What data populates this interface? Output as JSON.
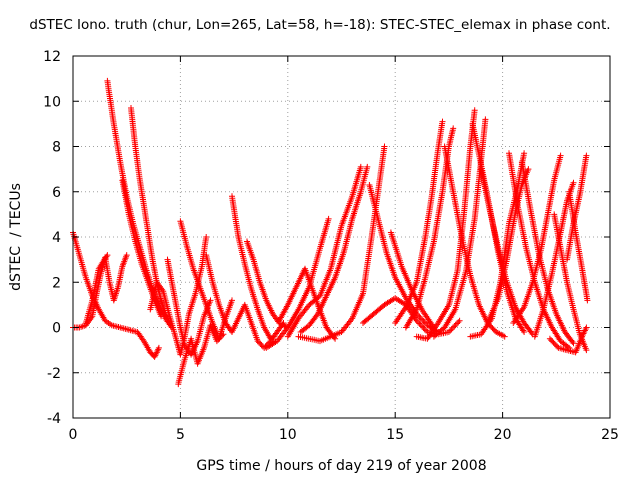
{
  "chart_data": {
    "type": "scatter",
    "title": "dSTEC Iono. truth (chur, Lon=265, Lat=58, h=-18): STEC-STEC_elemax in phase cont.",
    "xlabel": "GPS time / hours of day 219 of year 2008",
    "ylabel": "dSTEC  / TECUs",
    "xlim": [
      0,
      25
    ],
    "ylim": [
      -4,
      12
    ],
    "x_ticks": [
      "0",
      "5",
      "10",
      "15",
      "20",
      "25"
    ],
    "y_ticks": [
      "-4",
      "-2",
      "0",
      "2",
      "4",
      "6",
      "8",
      "10",
      "12"
    ],
    "grid": true,
    "marker": "+",
    "color": "#ff0000",
    "series": [
      {
        "points": [
          [
            0,
            4.2
          ],
          [
            0.3,
            3.2
          ],
          [
            0.6,
            2.2
          ],
          [
            0.9,
            1.4
          ],
          [
            1.2,
            0.8
          ],
          [
            1.5,
            0.3
          ],
          [
            1.8,
            0.1
          ],
          [
            2.2,
            0.0
          ],
          [
            2.6,
            -0.1
          ],
          [
            3.0,
            -0.2
          ],
          [
            3.3,
            -0.6
          ],
          [
            3.6,
            -1.1
          ],
          [
            3.8,
            -1.3
          ],
          [
            4.0,
            -0.9
          ]
        ]
      },
      {
        "points": [
          [
            0,
            0
          ],
          [
            0.3,
            0
          ],
          [
            0.6,
            0.1
          ],
          [
            0.9,
            0.5
          ],
          [
            1.1,
            1.5
          ],
          [
            1.3,
            2.4
          ],
          [
            1.5,
            3.1
          ],
          [
            1.7,
            2.0
          ],
          [
            1.9,
            1.2
          ],
          [
            2.1,
            1.8
          ],
          [
            2.3,
            2.7
          ],
          [
            2.5,
            3.2
          ]
        ]
      },
      {
        "points": [
          [
            0.6,
            0.2
          ],
          [
            0.9,
            1.2
          ],
          [
            1.2,
            2.6
          ],
          [
            1.6,
            3.2
          ]
        ]
      },
      {
        "points": [
          [
            1.6,
            10.9
          ],
          [
            1.9,
            9.0
          ],
          [
            2.2,
            7.3
          ],
          [
            2.5,
            5.8
          ],
          [
            2.8,
            4.6
          ],
          [
            3.1,
            3.6
          ],
          [
            3.4,
            2.6
          ],
          [
            3.7,
            1.7
          ],
          [
            4.0,
            1.0
          ],
          [
            4.3,
            0.4
          ],
          [
            4.6,
            0.0
          ]
        ]
      },
      {
        "points": [
          [
            2.7,
            9.7
          ],
          [
            2.9,
            8.0
          ],
          [
            3.1,
            6.6
          ],
          [
            3.3,
            5.4
          ],
          [
            3.5,
            4.2
          ],
          [
            3.7,
            3.0
          ],
          [
            3.9,
            2.0
          ],
          [
            4.1,
            1.2
          ],
          [
            4.3,
            0.6
          ],
          [
            4.5,
            0.2
          ]
        ]
      },
      {
        "points": [
          [
            2.3,
            6.5
          ],
          [
            2.6,
            5.0
          ],
          [
            2.9,
            3.8
          ],
          [
            3.2,
            2.8
          ],
          [
            3.5,
            2.0
          ],
          [
            3.8,
            1.2
          ],
          [
            4.1,
            0.5
          ]
        ]
      },
      {
        "points": [
          [
            3.6,
            0.8
          ],
          [
            3.9,
            2.0
          ],
          [
            4.2,
            1.6
          ],
          [
            4.5,
            0.5
          ],
          [
            4.8,
            -0.5
          ],
          [
            5.0,
            -1.2
          ],
          [
            5.2,
            -0.4
          ],
          [
            5.4,
            0.6
          ],
          [
            5.7,
            1.5
          ],
          [
            6.0,
            2.7
          ],
          [
            6.2,
            4.0
          ]
        ]
      },
      {
        "points": [
          [
            4.4,
            3.0
          ],
          [
            4.6,
            2.0
          ],
          [
            4.8,
            1.0
          ],
          [
            5.0,
            0.0
          ],
          [
            5.2,
            -0.8
          ],
          [
            5.5,
            -1.2
          ],
          [
            5.8,
            -0.6
          ],
          [
            6.1,
            0.5
          ],
          [
            6.4,
            1.2
          ]
        ]
      },
      {
        "points": [
          [
            5.0,
            4.7
          ],
          [
            5.3,
            3.6
          ],
          [
            5.6,
            2.6
          ],
          [
            5.9,
            1.8
          ],
          [
            6.2,
            1.0
          ],
          [
            6.5,
            0.2
          ],
          [
            6.8,
            -0.5
          ],
          [
            7.1,
            0.4
          ],
          [
            7.4,
            1.2
          ]
        ]
      },
      {
        "points": [
          [
            4.9,
            -2.5
          ],
          [
            5.2,
            -1.4
          ],
          [
            5.5,
            -0.5
          ],
          [
            5.8,
            -1.6
          ],
          [
            6.1,
            -0.9
          ],
          [
            6.4,
            0.1
          ],
          [
            6.7,
            -0.6
          ],
          [
            7.0,
            -0.3
          ]
        ]
      },
      {
        "points": [
          [
            6.2,
            3.2
          ],
          [
            6.5,
            2.0
          ],
          [
            6.8,
            1.0
          ],
          [
            7.1,
            0.2
          ],
          [
            7.4,
            -0.2
          ],
          [
            7.7,
            0.4
          ],
          [
            8.0,
            1.0
          ],
          [
            8.3,
            0.2
          ],
          [
            8.6,
            -0.6
          ],
          [
            8.9,
            -0.9
          ],
          [
            9.2,
            -0.6
          ],
          [
            9.5,
            -0.2
          ],
          [
            9.8,
            0.2
          ]
        ]
      },
      {
        "points": [
          [
            7.4,
            5.8
          ],
          [
            7.7,
            4.0
          ],
          [
            8.0,
            2.8
          ],
          [
            8.3,
            1.7
          ],
          [
            8.6,
            0.8
          ],
          [
            8.9,
            0.0
          ],
          [
            9.2,
            -0.5
          ]
        ]
      },
      {
        "points": [
          [
            8.1,
            3.8
          ],
          [
            8.4,
            3.0
          ],
          [
            8.7,
            2.0
          ],
          [
            9.0,
            1.2
          ],
          [
            9.3,
            0.6
          ],
          [
            9.6,
            0.2
          ],
          [
            10.0,
            0.0
          ]
        ]
      },
      {
        "points": [
          [
            9.0,
            -0.9
          ],
          [
            9.5,
            -0.6
          ],
          [
            10.0,
            0.0
          ],
          [
            10.5,
            0.8
          ],
          [
            11.0,
            1.8
          ],
          [
            11.5,
            3.5
          ],
          [
            11.9,
            4.8
          ]
        ]
      },
      {
        "points": [
          [
            10.0,
            -0.4
          ],
          [
            10.5,
            0.4
          ],
          [
            11.0,
            1.0
          ],
          [
            11.5,
            1.4
          ],
          [
            12.0,
            2.6
          ],
          [
            12.5,
            4.5
          ],
          [
            13.0,
            5.8
          ],
          [
            13.4,
            7.1
          ]
        ]
      },
      {
        "points": [
          [
            9.6,
            0.3
          ],
          [
            10.0,
            1.0
          ],
          [
            10.4,
            1.8
          ],
          [
            10.8,
            2.6
          ],
          [
            11.1,
            1.8
          ],
          [
            11.4,
            1.0
          ],
          [
            11.8,
            0.0
          ],
          [
            12.2,
            -0.5
          ]
        ]
      },
      {
        "points": [
          [
            10.5,
            -0.4
          ],
          [
            11.5,
            -0.6
          ],
          [
            12.5,
            -0.2
          ],
          [
            13.0,
            0.4
          ],
          [
            13.5,
            1.5
          ],
          [
            13.9,
            4.0
          ],
          [
            14.2,
            6.0
          ],
          [
            14.5,
            8.0
          ]
        ]
      },
      {
        "points": [
          [
            10.6,
            -0.2
          ],
          [
            11.0,
            0.1
          ],
          [
            11.4,
            0.6
          ],
          [
            11.8,
            1.4
          ],
          [
            12.2,
            2.2
          ],
          [
            12.6,
            3.3
          ],
          [
            13.0,
            4.8
          ],
          [
            13.4,
            6.0
          ],
          [
            13.7,
            7.1
          ]
        ]
      },
      {
        "points": [
          [
            13.8,
            6.3
          ],
          [
            14.2,
            4.8
          ],
          [
            14.6,
            3.3
          ],
          [
            15.0,
            2.2
          ],
          [
            15.5,
            1.3
          ],
          [
            16.0,
            0.6
          ],
          [
            16.5,
            0.1
          ],
          [
            17.0,
            -0.2
          ]
        ]
      },
      {
        "points": [
          [
            13.5,
            0.2
          ],
          [
            14.0,
            0.6
          ],
          [
            14.5,
            1.0
          ],
          [
            15.0,
            1.3
          ],
          [
            15.5,
            1.0
          ],
          [
            16.0,
            0.3
          ],
          [
            16.5,
            -0.2
          ],
          [
            17.0,
            -0.3
          ],
          [
            17.5,
            -0.2
          ],
          [
            18.0,
            0.3
          ]
        ]
      },
      {
        "points": [
          [
            14.8,
            4.2
          ],
          [
            15.3,
            2.7
          ],
          [
            15.8,
            1.6
          ],
          [
            16.3,
            0.7
          ],
          [
            16.8,
            0.0
          ]
        ]
      },
      {
        "points": [
          [
            15.0,
            0.2
          ],
          [
            15.5,
            0.9
          ],
          [
            16.0,
            2.0
          ],
          [
            16.4,
            4.0
          ],
          [
            16.7,
            5.8
          ],
          [
            17.0,
            7.9
          ],
          [
            17.2,
            9.1
          ]
        ]
      },
      {
        "points": [
          [
            15.5,
            0.0
          ],
          [
            16.0,
            0.8
          ],
          [
            16.4,
            2.2
          ],
          [
            16.8,
            3.8
          ],
          [
            17.2,
            6.0
          ],
          [
            17.5,
            8.0
          ],
          [
            17.7,
            8.8
          ]
        ]
      },
      {
        "points": [
          [
            16.0,
            -0.4
          ],
          [
            16.5,
            -0.5
          ],
          [
            17.0,
            0.2
          ],
          [
            17.5,
            1.0
          ],
          [
            17.9,
            2.5
          ],
          [
            18.2,
            5.0
          ],
          [
            18.5,
            8.0
          ],
          [
            18.7,
            9.6
          ]
        ]
      },
      {
        "points": [
          [
            16.8,
            -0.4
          ],
          [
            17.3,
            0.0
          ],
          [
            17.8,
            0.8
          ],
          [
            18.3,
            2.5
          ],
          [
            18.7,
            4.8
          ],
          [
            19.0,
            7.4
          ],
          [
            19.2,
            9.2
          ]
        ]
      },
      {
        "points": [
          [
            17.3,
            8.0
          ],
          [
            17.7,
            6.0
          ],
          [
            18.1,
            4.0
          ],
          [
            18.5,
            2.3
          ],
          [
            18.9,
            1.0
          ],
          [
            19.3,
            0.2
          ],
          [
            19.7,
            -0.2
          ],
          [
            20.1,
            -0.4
          ]
        ]
      },
      {
        "points": [
          [
            18.6,
            9.0
          ],
          [
            19.0,
            7.2
          ],
          [
            19.4,
            5.3
          ],
          [
            19.8,
            3.3
          ],
          [
            20.2,
            1.6
          ],
          [
            20.6,
            0.4
          ],
          [
            21.0,
            -0.2
          ]
        ]
      },
      {
        "points": [
          [
            19.0,
            7.0
          ],
          [
            19.4,
            5.2
          ],
          [
            19.8,
            3.5
          ],
          [
            20.2,
            2.0
          ],
          [
            20.6,
            0.9
          ],
          [
            21.0,
            0.2
          ],
          [
            21.4,
            -0.3
          ]
        ]
      },
      {
        "points": [
          [
            18.5,
            -0.4
          ],
          [
            19.0,
            -0.3
          ],
          [
            19.5,
            0.4
          ],
          [
            19.9,
            2.0
          ],
          [
            20.3,
            4.6
          ],
          [
            20.7,
            6.2
          ],
          [
            21.0,
            7.7
          ]
        ]
      },
      {
        "points": [
          [
            19.3,
            0.2
          ],
          [
            19.8,
            1.3
          ],
          [
            20.2,
            3.0
          ],
          [
            20.6,
            5.1
          ],
          [
            20.9,
            6.3
          ],
          [
            21.2,
            7.0
          ]
        ]
      },
      {
        "points": [
          [
            20.3,
            7.7
          ],
          [
            20.7,
            5.4
          ],
          [
            21.1,
            3.5
          ],
          [
            21.5,
            2.0
          ],
          [
            21.9,
            0.8
          ],
          [
            22.3,
            0.0
          ],
          [
            22.7,
            -0.6
          ],
          [
            23.1,
            -0.9
          ]
        ]
      },
      {
        "points": [
          [
            20.9,
            7.3
          ],
          [
            21.3,
            5.2
          ],
          [
            21.7,
            3.2
          ],
          [
            22.1,
            1.7
          ],
          [
            22.5,
            0.6
          ],
          [
            22.9,
            -0.2
          ],
          [
            23.3,
            -0.7
          ]
        ]
      },
      {
        "points": [
          [
            20.5,
            0.2
          ],
          [
            21.0,
            0.9
          ],
          [
            21.4,
            2.0
          ],
          [
            21.8,
            3.5
          ],
          [
            22.1,
            5.0
          ],
          [
            22.4,
            6.5
          ],
          [
            22.7,
            7.6
          ]
        ]
      },
      {
        "points": [
          [
            21.5,
            -0.4
          ],
          [
            21.9,
            0.8
          ],
          [
            22.3,
            2.4
          ],
          [
            22.7,
            4.2
          ],
          [
            23.0,
            5.6
          ],
          [
            23.3,
            6.4
          ]
        ]
      },
      {
        "points": [
          [
            22.4,
            5.0
          ],
          [
            22.7,
            3.5
          ],
          [
            23.0,
            2.0
          ],
          [
            23.3,
            0.8
          ],
          [
            23.6,
            -0.3
          ],
          [
            23.9,
            -1.0
          ]
        ]
      },
      {
        "points": [
          [
            22.2,
            -0.5
          ],
          [
            22.6,
            -0.9
          ],
          [
            23.0,
            -1.0
          ],
          [
            23.4,
            -1.1
          ],
          [
            23.7,
            -0.4
          ],
          [
            23.9,
            0.0
          ]
        ]
      },
      {
        "points": [
          [
            23.0,
            3.0
          ],
          [
            23.3,
            4.6
          ],
          [
            23.6,
            5.9
          ],
          [
            23.9,
            7.6
          ]
        ]
      },
      {
        "points": [
          [
            23.1,
            6.0
          ],
          [
            23.4,
            4.2
          ],
          [
            23.7,
            2.6
          ],
          [
            23.95,
            1.2
          ]
        ]
      }
    ]
  }
}
